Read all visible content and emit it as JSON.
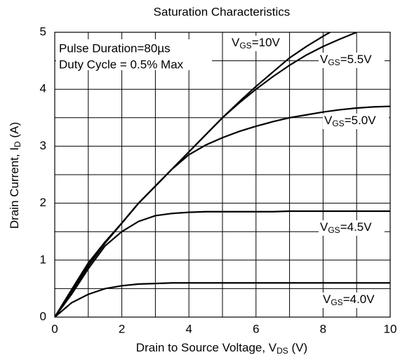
{
  "chart_data": {
    "type": "line",
    "title": "Saturation Characteristics",
    "x_label": [
      "Drain to Source Voltage, V",
      "DS",
      " (V)"
    ],
    "y_label": [
      "Drain Current, I",
      "D",
      " (A)"
    ],
    "annotations": [
      "Pulse Duration=80µs",
      "Duty Cycle = 0.5% Max"
    ],
    "x": [
      0,
      0.5,
      1,
      1.5,
      2,
      2.5,
      3,
      3.5,
      4,
      4.5,
      5,
      5.5,
      6,
      6.5,
      7,
      7.5,
      8,
      8.5,
      9,
      9.5,
      10
    ],
    "series": [
      {
        "name": [
          "V",
          "GS",
          "=10V"
        ],
        "color": "#000000",
        "values": [
          0,
          0.45,
          0.9,
          1.3,
          1.65,
          2.0,
          2.3,
          2.6,
          2.9,
          3.2,
          3.5,
          3.78,
          4.05,
          4.3,
          4.55,
          4.75,
          4.93,
          5.1,
          null,
          null,
          null
        ]
      },
      {
        "name": [
          "V",
          "GS",
          "=5.5V"
        ],
        "color": "#000000",
        "values": [
          0,
          0.45,
          0.9,
          1.3,
          1.65,
          2.0,
          2.3,
          2.6,
          2.9,
          3.2,
          3.5,
          3.76,
          4.0,
          4.22,
          4.42,
          4.6,
          4.75,
          4.88,
          5.0,
          null,
          null
        ]
      },
      {
        "name": [
          "V",
          "GS",
          "=5.0V"
        ],
        "color": "#000000",
        "values": [
          0,
          0.48,
          0.95,
          1.32,
          1.65,
          2.0,
          2.3,
          2.6,
          2.85,
          3.02,
          3.15,
          3.26,
          3.35,
          3.43,
          3.5,
          3.55,
          3.6,
          3.64,
          3.67,
          3.69,
          3.7
        ]
      },
      {
        "name": [
          "V",
          "GS",
          "=4.5V"
        ],
        "color": "#000000",
        "values": [
          0,
          0.4,
          0.85,
          1.25,
          1.5,
          1.68,
          1.78,
          1.82,
          1.84,
          1.85,
          1.85,
          1.85,
          1.85,
          1.85,
          1.86,
          1.86,
          1.86,
          1.86,
          1.86,
          1.86,
          1.86
        ]
      },
      {
        "name": [
          "V",
          "GS",
          "=4.0V"
        ],
        "color": "#000000",
        "values": [
          0,
          0.25,
          0.4,
          0.5,
          0.55,
          0.58,
          0.59,
          0.6,
          0.6,
          0.6,
          0.6,
          0.6,
          0.6,
          0.6,
          0.6,
          0.6,
          0.6,
          0.6,
          0.6,
          0.6,
          0.6
        ]
      }
    ],
    "xlim": [
      0,
      10
    ],
    "xticks": [
      0,
      2,
      4,
      6,
      8,
      10
    ],
    "x_minor_ticks": [
      1,
      3,
      5,
      7,
      9
    ],
    "ylim": [
      0,
      5
    ],
    "yticks": [
      0,
      1,
      2,
      3,
      4,
      5
    ],
    "y_minor_ticks": [
      0.5,
      1.5,
      2.5,
      3.5,
      4.5
    ],
    "grid": true
  }
}
